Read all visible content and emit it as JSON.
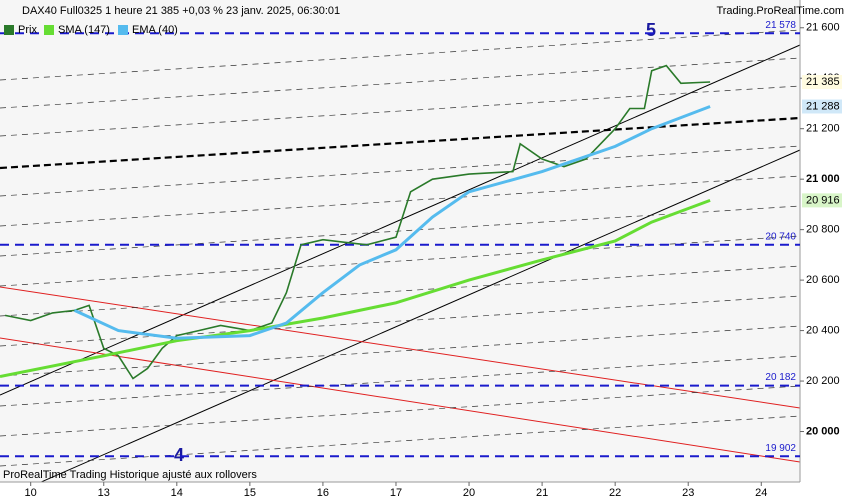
{
  "chart_data": {
    "type": "line",
    "title": "DAX40 Full0325 1 heure 21 385 +0,03 % 23 janv. 2025, 06:30:01",
    "source": "Trading.ProRealTime.com",
    "footer": "ProRealTime Trading  Historique ajusté aux rollovers",
    "xlim": [
      -0.42,
      10.53
    ],
    "xticks": [
      {
        "value": 0,
        "label": "10"
      },
      {
        "value": 1,
        "label": "13"
      },
      {
        "value": 2,
        "label": "14"
      },
      {
        "value": 3,
        "label": "15"
      },
      {
        "value": 4,
        "label": "16"
      },
      {
        "value": 5,
        "label": "17"
      },
      {
        "value": 6,
        "label": "20"
      },
      {
        "value": 7,
        "label": "21"
      },
      {
        "value": 8,
        "label": "22"
      },
      {
        "value": 9,
        "label": "23"
      },
      {
        "value": 10,
        "label": "24"
      }
    ],
    "ylim": [
      19800,
      21710
    ],
    "yticks": [
      {
        "value": 20000,
        "label": "20 000"
      },
      {
        "value": 20200,
        "label": "20 200"
      },
      {
        "value": 20400,
        "label": "20 400"
      },
      {
        "value": 20600,
        "label": "20 600"
      },
      {
        "value": 20800,
        "label": "20 800"
      },
      {
        "value": 21000,
        "label": "21 000"
      },
      {
        "value": 21200,
        "label": "21 200"
      },
      {
        "value": 21400,
        "label": "21 400"
      },
      {
        "value": 21600,
        "label": "21 600"
      }
    ],
    "levels": [
      {
        "value": 21578,
        "label": "21 578"
      },
      {
        "value": 20740,
        "label": "20 740"
      },
      {
        "value": 20182,
        "label": "20 182"
      },
      {
        "value": 19902,
        "label": "19 902"
      }
    ],
    "annotations": [
      "5",
      "4"
    ],
    "series": [
      {
        "name": "Prix",
        "color": "#2a7a2a",
        "last_label": "21 385",
        "x": [
          -0.35,
          0,
          0.3,
          0.6,
          0.8,
          1.0,
          1.2,
          1.4,
          1.6,
          1.8,
          2.0,
          2.3,
          2.6,
          3.0,
          3.3,
          3.5,
          3.7,
          4.0,
          4.3,
          4.6,
          5.0,
          5.2,
          5.5,
          6.0,
          6.6,
          6.7,
          7.0,
          7.3,
          7.6,
          8.0,
          8.2,
          8.4,
          8.5,
          8.7,
          8.9,
          9.3
        ],
        "values": [
          20460,
          20440,
          20470,
          20480,
          20500,
          20330,
          20300,
          20210,
          20250,
          20330,
          20380,
          20400,
          20420,
          20400,
          20430,
          20550,
          20740,
          20760,
          20750,
          20740,
          20770,
          20950,
          21000,
          21020,
          21030,
          21140,
          21080,
          21050,
          21080,
          21200,
          21280,
          21280,
          21430,
          21450,
          21380,
          21385
        ]
      },
      {
        "name": "SMA (147)",
        "color": "#66dd33",
        "last_label": "20 916",
        "x": [
          -0.42,
          1,
          2,
          3,
          4,
          5,
          6,
          7,
          8,
          8.5,
          9.3
        ],
        "values": [
          20218,
          20300,
          20360,
          20400,
          20450,
          20510,
          20600,
          20680,
          20755,
          20830,
          20916
        ]
      },
      {
        "name": "EMA (40)",
        "color": "#55bbee",
        "last_label": "21 288",
        "x": [
          0.6,
          1.2,
          2,
          3,
          3.5,
          4,
          4.5,
          5,
          5.5,
          6,
          7,
          8,
          8.5,
          9.3
        ],
        "values": [
          20480,
          20400,
          20370,
          20380,
          20430,
          20550,
          20660,
          20720,
          20850,
          20950,
          21030,
          21130,
          21200,
          21288
        ]
      }
    ]
  }
}
